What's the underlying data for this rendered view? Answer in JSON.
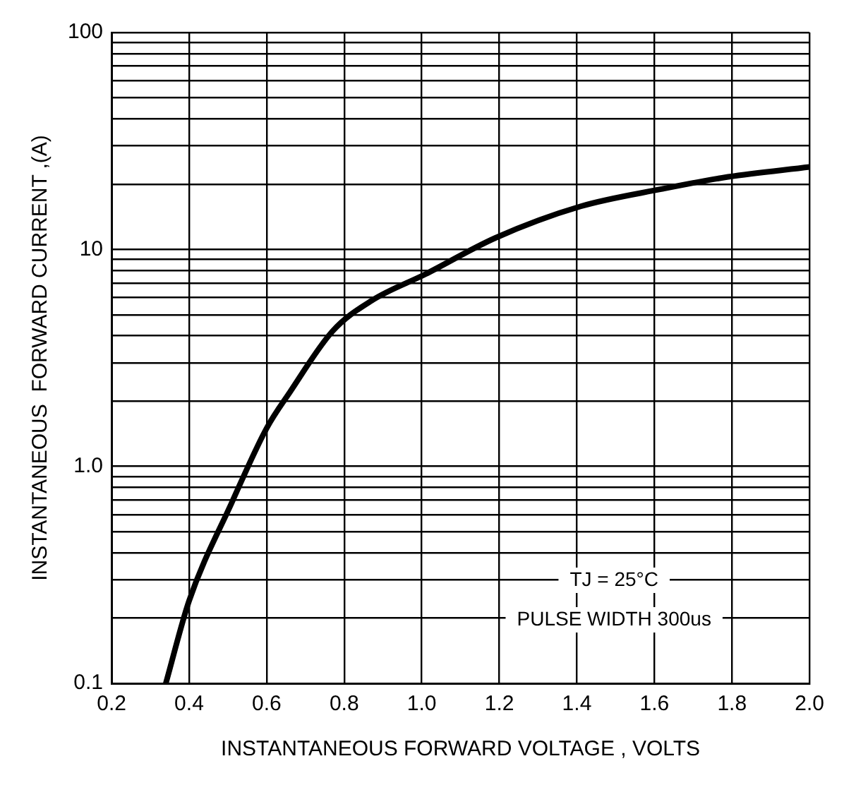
{
  "chart_data": {
    "type": "line",
    "xlabel": "INSTANTANEOUS FORWARD VOLTAGE , VOLTS",
    "ylabel": "INSTANTANEOUS  FORWARD CURRENT ,(A)",
    "x": [
      0.34,
      0.4,
      0.51,
      0.6,
      0.66,
      0.77,
      0.87,
      1.01,
      1.19,
      1.41,
      1.62,
      1.79,
      2.0
    ],
    "series": [
      {
        "color": "#000000",
        "values": [
          0.1,
          0.24,
          0.68,
          1.5,
          2.2,
          4.2,
          5.8,
          7.7,
          11.3,
          15.8,
          19,
          21.6,
          24
        ]
      }
    ],
    "xlim": [
      0.2,
      2.0
    ],
    "xticks": [
      0.2,
      0.4,
      0.6,
      0.8,
      {
        "value": 1.0,
        "label": "1.0"
      },
      1.2,
      1.4,
      1.6,
      1.8,
      {
        "value": 2.0,
        "label": "2.0"
      }
    ],
    "ylim": [
      0.1,
      100
    ],
    "yticks": [
      0.1,
      {
        "value": 0.2,
        "label": null
      },
      {
        "value": 0.3,
        "label": null
      },
      {
        "value": 0.4,
        "label": null
      },
      {
        "value": 0.5,
        "label": null
      },
      {
        "value": 0.6,
        "label": null
      },
      {
        "value": 0.7,
        "label": null
      },
      {
        "value": 0.8,
        "label": null
      },
      {
        "value": 0.9,
        "label": null
      },
      {
        "value": 1,
        "label": "1.0"
      },
      {
        "value": 2,
        "label": null
      },
      {
        "value": 3,
        "label": null
      },
      {
        "value": 4,
        "label": null
      },
      {
        "value": 5,
        "label": null
      },
      {
        "value": 6,
        "label": null
      },
      {
        "value": 7,
        "label": null
      },
      {
        "value": 8,
        "label": null
      },
      {
        "value": 9,
        "label": null
      },
      10,
      {
        "value": 20,
        "label": null
      },
      {
        "value": 30,
        "label": null
      },
      {
        "value": 40,
        "label": null
      },
      {
        "value": 50,
        "label": null
      },
      {
        "value": 60,
        "label": null
      },
      {
        "value": 70,
        "label": null
      },
      {
        "value": 80,
        "label": null
      },
      {
        "value": 90,
        "label": null
      },
      100
    ],
    "log": "y",
    "grid": true,
    "marker": "none",
    "line_style": "solid",
    "legend": false,
    "annotations": [
      "TJ = 25°C",
      "PULSE WIDTH 300us"
    ]
  }
}
